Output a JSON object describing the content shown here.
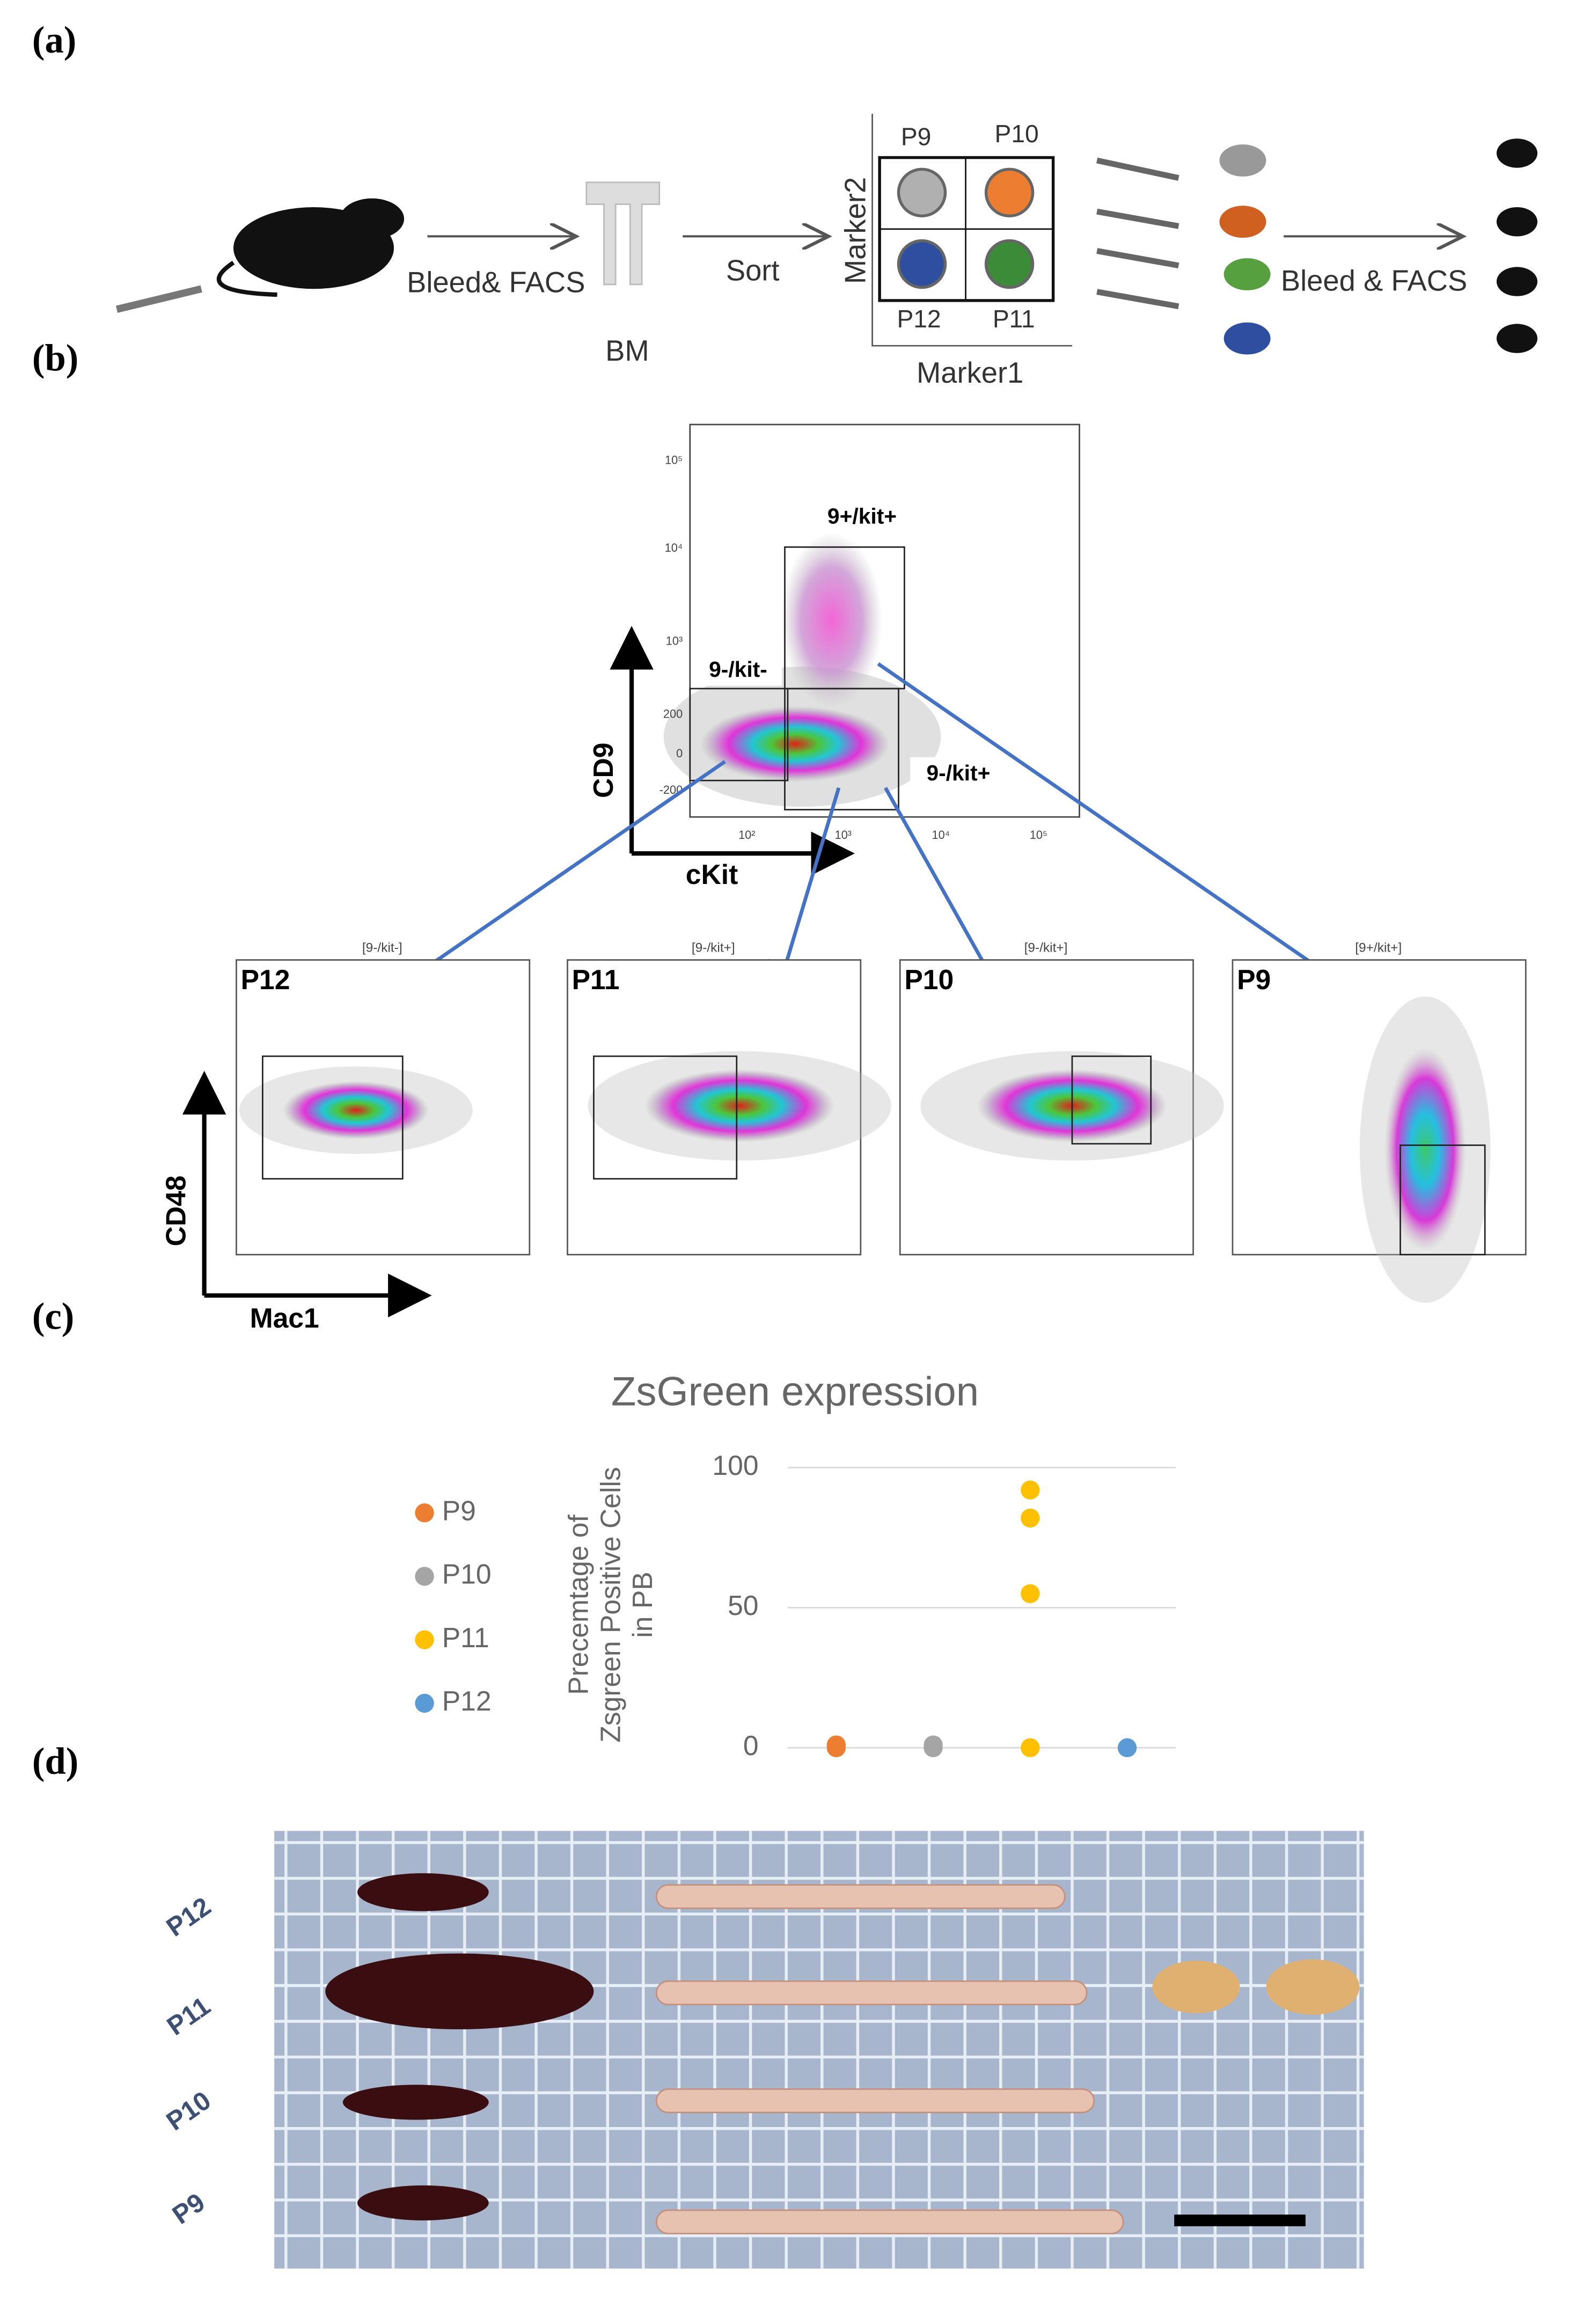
{
  "panel_labels": [
    "(a)",
    "(b)",
    "(c)",
    "(d)"
  ],
  "schematic": {
    "step1": "Bleed& FACS",
    "bm": "BM",
    "sort": "Sort",
    "marker2": "Marker2",
    "marker1": "Marker1",
    "quadrants": [
      "P9",
      "P10",
      "P12",
      "P11"
    ],
    "step2": "Bleed & FACS"
  },
  "flow_main": {
    "y_label": "CD9",
    "x_label": "cKit",
    "gates": [
      "9+/kit+",
      "9-/kit-",
      "9-/kit+"
    ],
    "y_ticks": [
      "10⁵",
      "10⁴",
      "10³",
      "200",
      "0",
      "-200"
    ],
    "x_ticks": [
      "10²",
      "10³",
      "10⁴",
      "10⁵"
    ]
  },
  "flow_sub": {
    "y_label": "CD48",
    "x_label": "Mac1",
    "plots": [
      {
        "header": "[9-/kit-]",
        "name": "P12"
      },
      {
        "header": "[9-/kit+]",
        "name": "P11"
      },
      {
        "header": "[9-/kit+]",
        "name": "P10"
      },
      {
        "header": "[9+/kit+]",
        "name": "P9"
      }
    ]
  },
  "chart_data": {
    "type": "scatter",
    "title": "ZsGreen expression",
    "y_label": [
      "Precemtage of",
      "Zsgreen Positive Cells",
      "in PB"
    ],
    "categories": [
      null,
      null,
      null,
      null
    ],
    "xlim": [
      0.5,
      4.5
    ],
    "ylim": [
      0,
      100
    ],
    "yticks": [
      0,
      50,
      100
    ],
    "grid": true,
    "legend": "left",
    "series": [
      {
        "name": "P9",
        "color": "#ed7d31",
        "x": [
          1,
          1
        ],
        "values": [
          0,
          1
        ]
      },
      {
        "name": "P10",
        "color": "#a5a5a5",
        "x": [
          2,
          2
        ],
        "values": [
          0,
          1
        ]
      },
      {
        "name": "P11",
        "color": "#ffc000",
        "x": [
          3,
          3,
          3,
          3
        ],
        "values": [
          0,
          55,
          82,
          92
        ]
      },
      {
        "name": "P12",
        "color": "#5b9bd5",
        "x": [
          4
        ],
        "values": [
          0
        ]
      }
    ]
  },
  "photo": {
    "labels": [
      "P12",
      "P11",
      "P10",
      "P9"
    ]
  }
}
